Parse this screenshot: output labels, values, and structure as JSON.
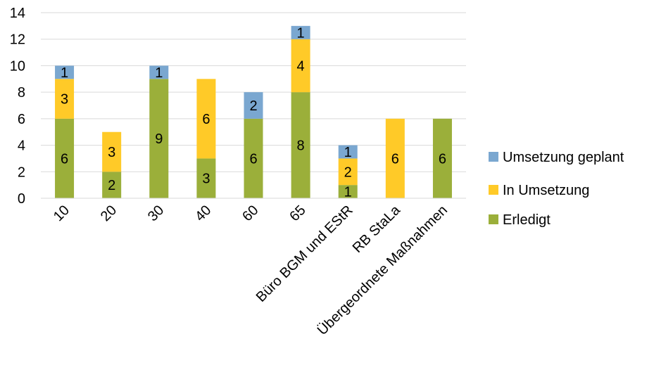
{
  "chart_data": {
    "type": "bar",
    "stacked": true,
    "categories": [
      "10",
      "20",
      "30",
      "40",
      "60",
      "65",
      "Büro BGM und EStR",
      "RB StaLa",
      "Übergeordnete Maßnahmen"
    ],
    "series": [
      {
        "name": "Erledigt",
        "color": "#9BAF3A",
        "values": [
          6,
          2,
          9,
          3,
          6,
          8,
          1,
          0,
          6
        ]
      },
      {
        "name": "In Umsetzung",
        "color": "#FFCA28",
        "values": [
          3,
          3,
          0,
          6,
          0,
          4,
          2,
          6,
          0
        ]
      },
      {
        "name": "Umsetzung geplant",
        "color": "#7AA7D0",
        "values": [
          1,
          0,
          1,
          0,
          2,
          1,
          1,
          0,
          0
        ]
      }
    ],
    "legend_order": [
      "Umsetzung geplant",
      "In Umsetzung",
      "Erledigt"
    ],
    "yticks": [
      0,
      2,
      4,
      6,
      8,
      10,
      12,
      14
    ],
    "ylim": [
      0,
      14
    ],
    "title": "",
    "xlabel": "",
    "ylabel": "",
    "grid": true,
    "legend_position": "right"
  }
}
